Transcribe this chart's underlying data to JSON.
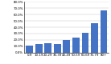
{
  "categories": [
    "0-9",
    "10-19",
    "20-29",
    "30-39",
    "40-49",
    "50-59",
    "60-69",
    "70-79",
    "80+"
  ],
  "values": [
    11.5,
    13.5,
    14.5,
    14.0,
    20.0,
    23.0,
    31.0,
    46.0,
    67.0
  ],
  "bar_color": "#4472C4",
  "ylim": [
    0,
    80
  ],
  "yticks": [
    0,
    10,
    20,
    30,
    40,
    50,
    60,
    70,
    80
  ],
  "ytick_labels": [
    "0.0%",
    "10.0%",
    "20.0%",
    "30.0%",
    "40.0%",
    "50.0%",
    "60.0%",
    "70.0%",
    "80.0%"
  ],
  "background_color": "#ffffff",
  "grid_color": "#c0c0c0"
}
